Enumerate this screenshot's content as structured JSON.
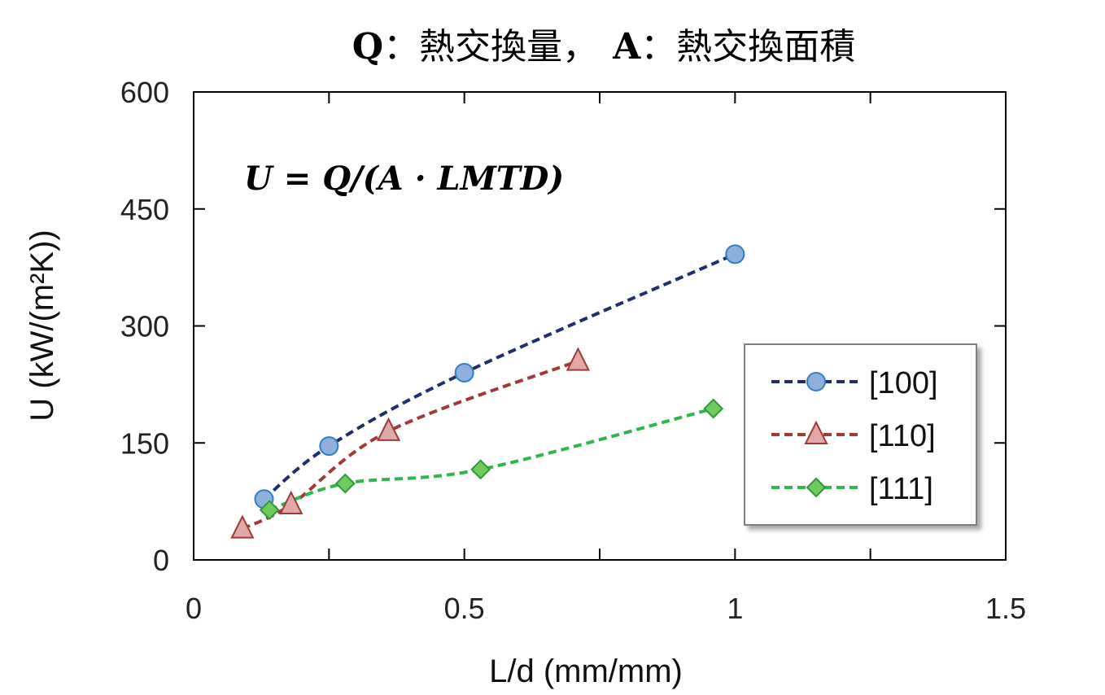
{
  "title": {
    "q_var": "Q",
    "q_desc": "：熱交換量，",
    "a_var": "A",
    "a_desc": "：熱交換面積"
  },
  "formula": "U = Q/(A · LMTD)",
  "chart_data": {
    "type": "line",
    "xlabel": "L/d (mm/mm)",
    "ylabel": "U (kW/(m²K))",
    "xlim": [
      0,
      1.5
    ],
    "ylim": [
      0,
      600
    ],
    "x_ticks": [
      0,
      0.5,
      1,
      1.5
    ],
    "x_tick_labels": [
      "0",
      "0.5",
      "1",
      "1.5"
    ],
    "x_minor_ticks": [
      0.25,
      0.75,
      1.25
    ],
    "y_ticks": [
      0,
      150,
      300,
      450,
      600
    ],
    "y_tick_labels": [
      "0",
      "150",
      "300",
      "450",
      "600"
    ],
    "legend_position": "bottom-right",
    "series": [
      {
        "name": "[100]",
        "marker": "circle",
        "line_color": "#1f2f6b",
        "marker_fill": "#8fb0dc",
        "marker_stroke": "#2e7fc4",
        "x": [
          0.13,
          0.25,
          0.5,
          1.0
        ],
        "y": [
          78,
          146,
          240,
          392
        ]
      },
      {
        "name": "[110]",
        "marker": "triangle",
        "line_color": "#a03a37",
        "marker_fill": "#e0a8a6",
        "marker_stroke": "#a03a37",
        "x": [
          0.09,
          0.18,
          0.36,
          0.71
        ],
        "y": [
          40,
          71,
          165,
          255
        ]
      },
      {
        "name": "[111]",
        "marker": "diamond",
        "line_color": "#2fb84a",
        "marker_fill": "#6dcc5a",
        "marker_stroke": "#2f9a3a",
        "x": [
          0.14,
          0.28,
          0.53,
          0.96
        ],
        "y": [
          64,
          98,
          116,
          194
        ]
      }
    ]
  }
}
